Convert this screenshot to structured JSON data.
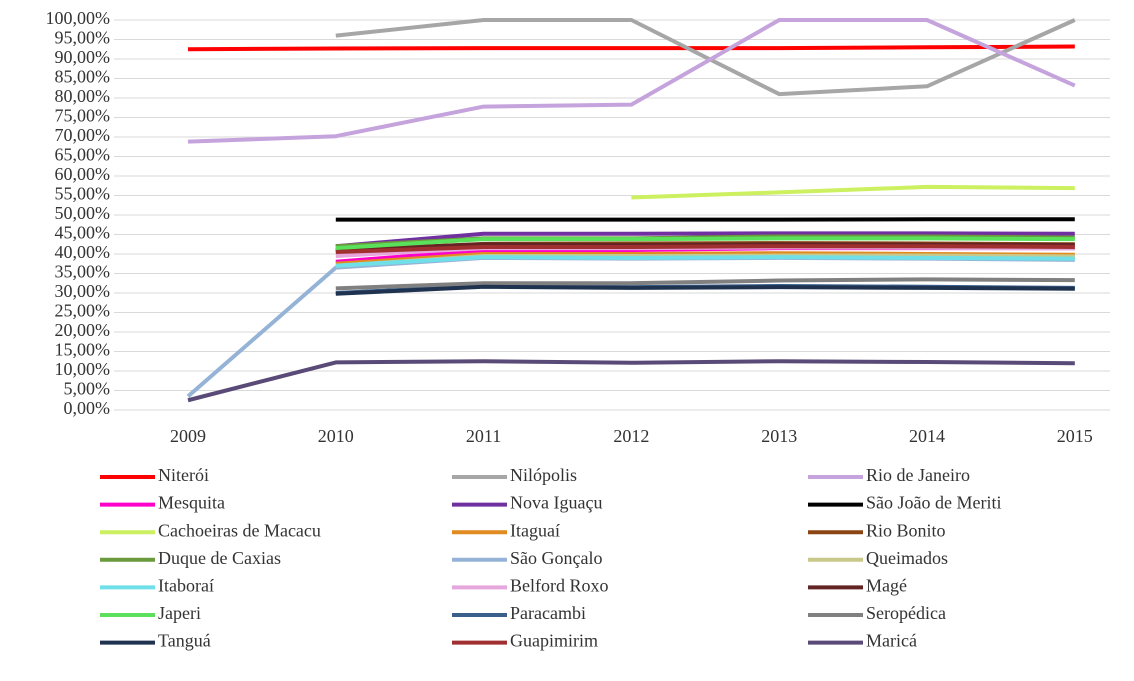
{
  "chart_data": {
    "type": "line",
    "categories": [
      "2009",
      "2010",
      "2011",
      "2012",
      "2013",
      "2014",
      "2015"
    ],
    "ylim": [
      0,
      100
    ],
    "yticks": [
      {
        "value": 0,
        "label": "0,00%"
      },
      {
        "value": 5,
        "label": "5,00%"
      },
      {
        "value": 10,
        "label": "10,00%"
      },
      {
        "value": 15,
        "label": "15,00%"
      },
      {
        "value": 20,
        "label": "20,00%"
      },
      {
        "value": 25,
        "label": "25,00%"
      },
      {
        "value": 30,
        "label": "30,00%"
      },
      {
        "value": 35,
        "label": "35,00%"
      },
      {
        "value": 40,
        "label": "40,00%"
      },
      {
        "value": 45,
        "label": "45,00%"
      },
      {
        "value": 50,
        "label": "50,00%"
      },
      {
        "value": 55,
        "label": "55,00%"
      },
      {
        "value": 60,
        "label": "60,00%"
      },
      {
        "value": 65,
        "label": "65,00%"
      },
      {
        "value": 70,
        "label": "70,00%"
      },
      {
        "value": 75,
        "label": "75,00%"
      },
      {
        "value": 80,
        "label": "80,00%"
      },
      {
        "value": 85,
        "label": "85,00%"
      },
      {
        "value": 90,
        "label": "90,00%"
      },
      {
        "value": 95,
        "label": "95,00%"
      },
      {
        "value": 100,
        "label": "100,00%"
      }
    ],
    "grid": true,
    "legend": "bottom",
    "series": [
      {
        "name": "Niterói",
        "color": "#ff0000",
        "values": [
          92.5,
          92.7,
          92.8,
          92.8,
          92.8,
          93.0,
          93.2
        ]
      },
      {
        "name": "Nilópolis",
        "color": "#a6a6a6",
        "values": [
          null,
          96,
          100,
          100,
          81,
          83,
          100
        ]
      },
      {
        "name": "Rio de Janeiro",
        "color": "#c5a3dc",
        "values": [
          68.8,
          70.2,
          77.8,
          78.3,
          100,
          100,
          83.2
        ]
      },
      {
        "name": "Mesquita",
        "color": "#ff00cc",
        "values": [
          null,
          38,
          41,
          41,
          41.5,
          41.5,
          41.5
        ]
      },
      {
        "name": "Nova Iguaçu",
        "color": "#7030a0",
        "values": [
          null,
          42,
          45.2,
          45.2,
          45.3,
          45.3,
          45.2
        ]
      },
      {
        "name": "São João de Meriti",
        "color": "#000000",
        "values": [
          null,
          48.8,
          48.8,
          48.8,
          48.8,
          48.9,
          48.9
        ]
      },
      {
        "name": "Cachoeiras de Macacu",
        "color": "#ccf060",
        "values": [
          null,
          null,
          null,
          54.5,
          55.8,
          57.2,
          56.9
        ]
      },
      {
        "name": "Itaguaí",
        "color": "#e08a20",
        "values": [
          null,
          37.5,
          40,
          40,
          40.2,
          40,
          39.8
        ]
      },
      {
        "name": "Rio Bonito",
        "color": "#8b4513",
        "values": [
          null,
          40.8,
          42.6,
          42.7,
          42.8,
          42.7,
          42.5
        ]
      },
      {
        "name": "Duque de Caxias",
        "color": "#6a9a3c",
        "values": [
          null,
          42,
          44,
          44,
          44.5,
          44.5,
          44.2
        ]
      },
      {
        "name": "São Gonçalo",
        "color": "#95b3d7",
        "values": [
          3.5,
          36.5,
          39,
          38.8,
          39,
          38.8,
          38.5
        ]
      },
      {
        "name": "Queimados",
        "color": "#c8c88a",
        "values": [
          null,
          37,
          39.5,
          39.5,
          39.6,
          39.6,
          39.4
        ]
      },
      {
        "name": "Itaboraí",
        "color": "#70e0e8",
        "values": [
          null,
          37,
          39.2,
          39,
          39.2,
          39,
          38.8
        ]
      },
      {
        "name": "Belford Roxo",
        "color": "#e6a8dc",
        "values": [
          null,
          39.5,
          41.5,
          41.5,
          41.7,
          41.6,
          41.4
        ]
      },
      {
        "name": "Magé",
        "color": "#632523",
        "values": [
          null,
          41,
          42.5,
          42.3,
          42.5,
          42.4,
          42.3
        ]
      },
      {
        "name": "Japeri",
        "color": "#5ae05a",
        "values": [
          null,
          41.5,
          43.8,
          43.8,
          44,
          44,
          43.8
        ]
      },
      {
        "name": "Paracambi",
        "color": "#3a5f8a",
        "values": [
          null,
          30,
          31.8,
          31.5,
          31.8,
          31.6,
          31.3
        ]
      },
      {
        "name": "Seropédica",
        "color": "#808080",
        "values": [
          null,
          31.2,
          32.5,
          32.5,
          33.2,
          33.5,
          33.3
        ]
      },
      {
        "name": "Tanguá",
        "color": "#1f3350",
        "values": [
          null,
          29.8,
          31.6,
          31.3,
          31.5,
          31.3,
          31.1
        ]
      },
      {
        "name": "Guapimirim",
        "color": "#a03030",
        "values": [
          null,
          40.5,
          41.8,
          41.8,
          42,
          42,
          41.8
        ]
      },
      {
        "name": "Maricá",
        "color": "#5a4a78",
        "values": [
          2.5,
          12.2,
          12.5,
          12.1,
          12.5,
          12.3,
          12.0
        ]
      }
    ]
  }
}
